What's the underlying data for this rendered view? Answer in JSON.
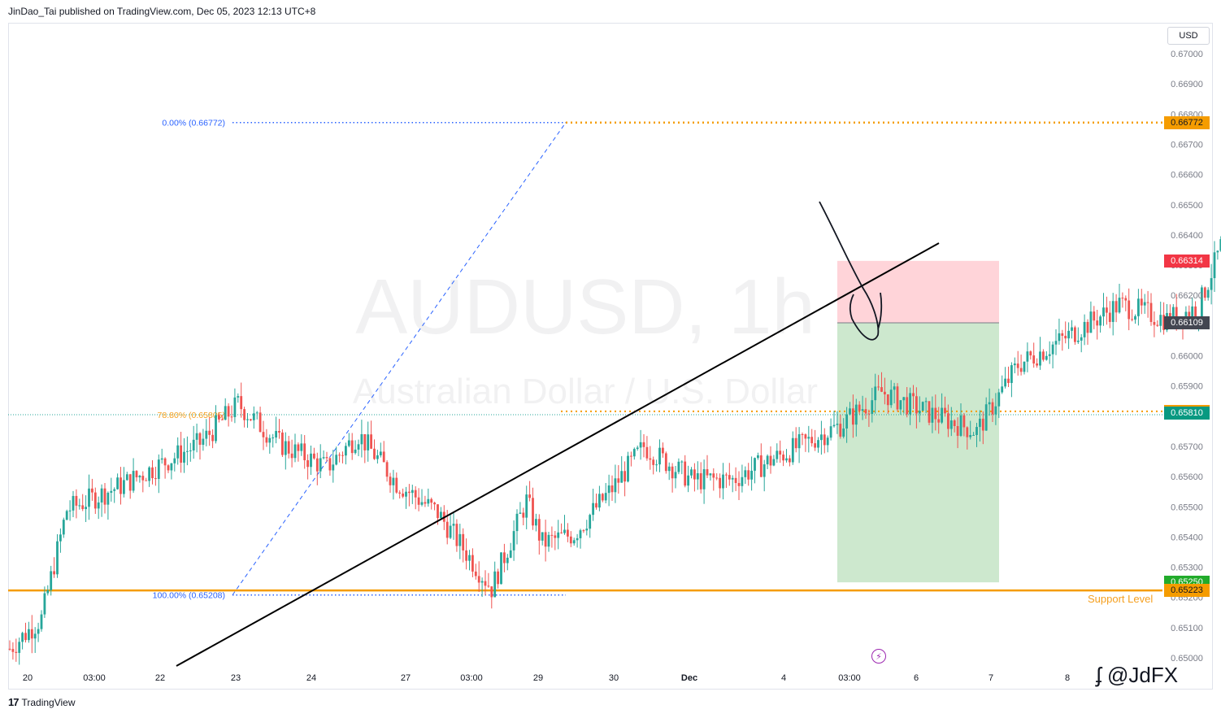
{
  "header": {
    "published_text": "JinDao_Tai published on TradingView.com, Dec 05, 2023 12:13 UTC+8"
  },
  "footer": {
    "brand": "TradingView",
    "logo_glyph": "17"
  },
  "currency_button": "USD",
  "watermark": {
    "symbol": "AUDUSD, 1h",
    "description": "Australian Dollar / U.S. Dollar",
    "signature": "@JdFX"
  },
  "colors": {
    "up": "#26a69a",
    "down": "#ef5350",
    "fib": "#2962ff",
    "orange": "#f59c00",
    "support": "#f5a020",
    "stop_zone": "#ffcdd2",
    "target_zone": "#c8e6c9",
    "stop_tag": "#f23645",
    "entry_tag": "#434651",
    "target_tag": "#22ab2b",
    "teal_tag": "#089981"
  },
  "chart_data": {
    "type": "candlestick",
    "symbol": "AUDUSD",
    "timeframe": "1h",
    "ylim": [
      0.6496,
      0.6712
    ],
    "y_ticks": [
      "0.67000",
      "0.66900",
      "0.66800",
      "0.66700",
      "0.66600",
      "0.66500",
      "0.66400",
      "0.66300",
      "0.66200",
      "0.66100",
      "0.66000",
      "0.65900",
      "0.65800",
      "0.65700",
      "0.65600",
      "0.65500",
      "0.65400",
      "0.65300",
      "0.65200",
      "0.65100",
      "0.65000"
    ],
    "x_labels": [
      "20",
      "03:00",
      "22",
      "23",
      "24",
      "27",
      "03:00",
      "29",
      "30",
      "Dec",
      "4",
      "03:00",
      "6",
      "7",
      "8"
    ],
    "fib_levels": [
      {
        "label": "0.00% (0.66772)",
        "value": 0.66772
      },
      {
        "label": "78.80% (0.65805)",
        "value": 0.65805
      },
      {
        "label": "100.00% (0.65208)",
        "value": 0.65208
      }
    ],
    "levels": {
      "upper_resistance": 0.66772,
      "support": 0.65223,
      "support_label": "Support Level",
      "mid_level": 0.65816
    },
    "position": {
      "side": "short",
      "stop": 0.66314,
      "entry": 0.66109,
      "target": 0.6525
    },
    "price_tags": [
      {
        "value": "0.66772",
        "kind": "orange"
      },
      {
        "value": "0.66314",
        "kind": "stop"
      },
      {
        "value": "0.66109",
        "kind": "entry"
      },
      {
        "value": "0.65816",
        "kind": "orange"
      },
      {
        "value": "0.65810",
        "kind": "teal"
      },
      {
        "value": "0.65250",
        "kind": "target"
      },
      {
        "value": "0.65223",
        "kind": "orange"
      }
    ],
    "trendline": {
      "from": [
        0,
        0.6507
      ],
      "to": [
        1,
        0.6641
      ]
    },
    "candles_anchor_path": [
      [
        0,
        0.6503
      ],
      [
        10,
        0.6513
      ],
      [
        18,
        0.6549
      ],
      [
        35,
        0.6557
      ],
      [
        60,
        0.6571
      ],
      [
        72,
        0.6584
      ],
      [
        85,
        0.6571
      ],
      [
        100,
        0.6563
      ],
      [
        110,
        0.6574
      ],
      [
        122,
        0.6558
      ],
      [
        135,
        0.6548
      ],
      [
        152,
        0.6523
      ],
      [
        163,
        0.6552
      ],
      [
        168,
        0.6538
      ],
      [
        178,
        0.6541
      ],
      [
        190,
        0.6556
      ],
      [
        200,
        0.657
      ],
      [
        215,
        0.6559
      ],
      [
        228,
        0.6559
      ],
      [
        245,
        0.6568
      ],
      [
        262,
        0.6577
      ],
      [
        275,
        0.6588
      ],
      [
        290,
        0.6581
      ],
      [
        305,
        0.6575
      ],
      [
        318,
        0.6597
      ],
      [
        333,
        0.6606
      ],
      [
        350,
        0.6617
      ],
      [
        365,
        0.6612
      ],
      [
        375,
        0.6616
      ],
      [
        390,
        0.6659
      ],
      [
        402,
        0.6653
      ],
      [
        410,
        0.6677
      ],
      [
        418,
        0.6647
      ],
      [
        432,
        0.6629
      ],
      [
        445,
        0.6618
      ],
      [
        460,
        0.6628
      ],
      [
        472,
        0.6618
      ],
      [
        485,
        0.6641
      ],
      [
        492,
        0.6651
      ],
      [
        505,
        0.6619
      ],
      [
        515,
        0.6599
      ],
      [
        530,
        0.6608
      ],
      [
        545,
        0.6614
      ],
      [
        556,
        0.6603
      ],
      [
        565,
        0.6621
      ],
      [
        578,
        0.6612
      ],
      [
        592,
        0.6629
      ],
      [
        603,
        0.6611
      ],
      [
        612,
        0.6653
      ],
      [
        620,
        0.6672
      ],
      [
        632,
        0.6675
      ],
      [
        640,
        0.6682
      ],
      [
        646,
        0.6672
      ],
      [
        655,
        0.6662
      ],
      [
        665,
        0.6648
      ],
      [
        678,
        0.6641
      ],
      [
        688,
        0.6636
      ],
      [
        700,
        0.6618
      ],
      [
        712,
        0.6612
      ],
      [
        722,
        0.6618
      ],
      [
        730,
        0.6615
      ],
      [
        738,
        0.6608
      ],
      [
        742,
        0.6593
      ],
      [
        748,
        0.6581
      ]
    ]
  }
}
